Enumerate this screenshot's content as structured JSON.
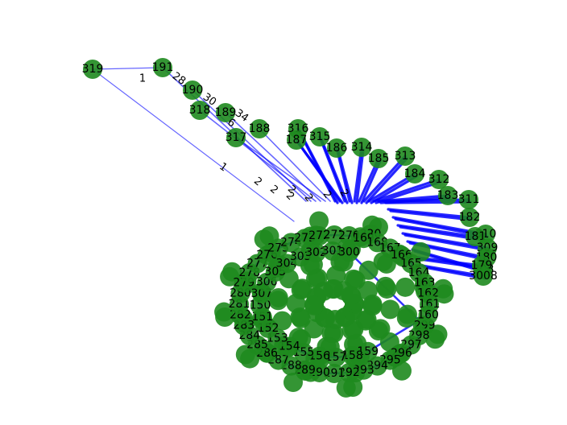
{
  "colors": {
    "node": "#1e8a1e",
    "edge": "#0000ff",
    "label": "#000000",
    "background": "#ffffff"
  },
  "graph": {
    "visible_node_labels": [
      "319",
      "191",
      "190",
      "318",
      "189",
      "188",
      "317",
      "316",
      "187",
      "315",
      "186",
      "314",
      "185",
      "313",
      "184",
      "312",
      "183",
      "311",
      "182",
      "310",
      "181",
      "309",
      "180",
      "308",
      "179",
      "3008",
      "320",
      "299",
      "298",
      "297",
      "296",
      "295",
      "294",
      "293",
      "292",
      "291",
      "290",
      "289",
      "288",
      "287",
      "286",
      "285",
      "284",
      "283",
      "282",
      "281",
      "280",
      "279",
      "278",
      "277",
      "276",
      "275",
      "274",
      "273",
      "272",
      "271",
      "270",
      "169",
      "168",
      "167",
      "166",
      "165",
      "164",
      "163",
      "162",
      "161",
      "160",
      "159",
      "158",
      "157",
      "156",
      "155",
      "154",
      "153",
      "152",
      "151",
      "150",
      "307",
      "306",
      "305",
      "304",
      "303",
      "302",
      "301",
      "300"
    ],
    "visible_edge_labels": [
      "1",
      "1",
      "28",
      "30",
      "34",
      "6",
      "2",
      "2",
      "2",
      "2",
      "2",
      "2",
      "2"
    ]
  }
}
